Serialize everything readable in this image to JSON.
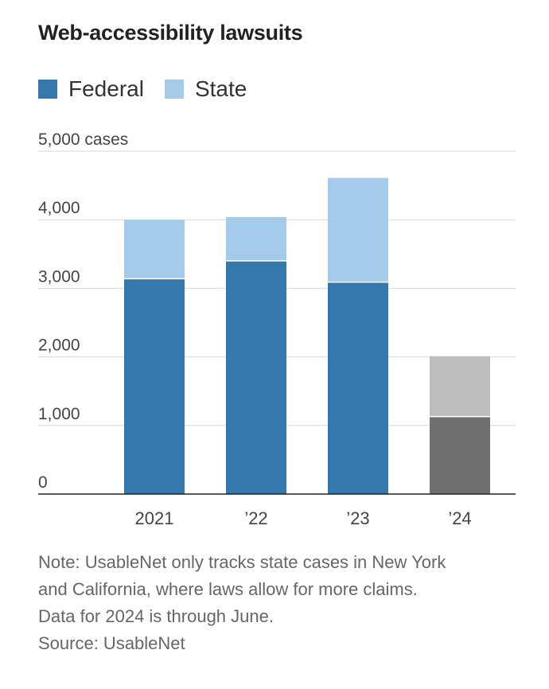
{
  "title": "Web-accessibility lawsuits",
  "legend": [
    {
      "label": "Federal",
      "color": "#3578ae"
    },
    {
      "label": "State",
      "color": "#a4cbea"
    }
  ],
  "chart_data": {
    "type": "bar",
    "stacked": true,
    "categories": [
      "2021",
      "’22",
      "’23",
      "’24"
    ],
    "series": [
      {
        "name": "Federal",
        "values": [
          3140,
          3400,
          3090,
          1130
        ]
      },
      {
        "name": "State",
        "values": [
          860,
          640,
          1520,
          880
        ]
      }
    ],
    "ylim": [
      0,
      5000
    ],
    "yticks": [
      0,
      1000,
      2000,
      3000,
      4000,
      5000
    ],
    "ytick_labels": [
      "0",
      "1,000",
      "2,000",
      "3,000",
      "4,000",
      "5,000 cases"
    ],
    "grid": true,
    "colors": {
      "federal": "#3578ae",
      "state": "#a4cbea",
      "federal_partial_year": "#707070",
      "state_partial_year": "#bdbdbd"
    }
  },
  "note": [
    "Note: UsableNet only tracks state cases in New York",
    "and California, where laws allow for more claims.",
    "Data for 2024 is through June.",
    "Source: UsableNet"
  ]
}
